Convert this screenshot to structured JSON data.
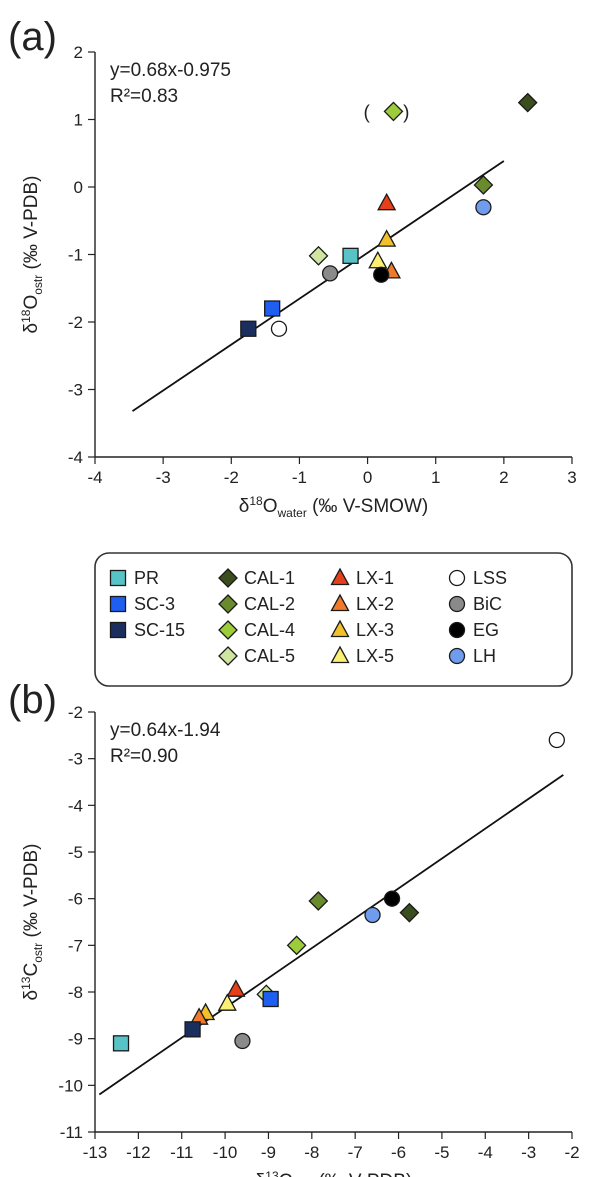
{
  "colors": {
    "PR": "#58c3c6",
    "SC-3": "#1e5ef0",
    "SC-15": "#1a2f5e",
    "CAL-1": "#3c4d1e",
    "CAL-2": "#6a8a2e",
    "CAL-4": "#9dcc3a",
    "CAL-5": "#cfe6a0",
    "LX-1": "#e6401a",
    "LX-2": "#f07a2a",
    "LX-3": "#f2c02a",
    "LX-5": "#fbf073",
    "LSS": "#ffffff",
    "BiC": "#8a8a8a",
    "EG": "#000000",
    "LH": "#6f9cec"
  },
  "legend": {
    "columns": [
      [
        {
          "name": "PR",
          "marker": "square"
        },
        {
          "name": "SC-3",
          "marker": "square"
        },
        {
          "name": "SC-15",
          "marker": "square"
        }
      ],
      [
        {
          "name": "CAL-1",
          "marker": "diamond"
        },
        {
          "name": "CAL-2",
          "marker": "diamond"
        },
        {
          "name": "CAL-4",
          "marker": "diamond"
        },
        {
          "name": "CAL-5",
          "marker": "diamond"
        }
      ],
      [
        {
          "name": "LX-1",
          "marker": "triangle"
        },
        {
          "name": "LX-2",
          "marker": "triangle"
        },
        {
          "name": "LX-3",
          "marker": "triangle"
        },
        {
          "name": "LX-5",
          "marker": "triangle"
        }
      ],
      [
        {
          "name": "LSS",
          "marker": "circle"
        },
        {
          "name": "BiC",
          "marker": "circle"
        },
        {
          "name": "EG",
          "marker": "circle"
        },
        {
          "name": "LH",
          "marker": "circle"
        }
      ]
    ]
  },
  "chart_data": [
    {
      "panel_label": "(a)",
      "type": "scatter",
      "equation": "y=0.68x-0.975",
      "r2": "R²=0.83",
      "xlabel_parts": {
        "main": "δ",
        "sup": "18",
        "mid": "O",
        "sub": "water",
        "tail": " (‰ V-SMOW)"
      },
      "ylabel_parts": {
        "main": "δ",
        "sup": "18",
        "mid": "O",
        "sub": "ostr",
        "tail": " (‰ V-PDB)"
      },
      "xlim": [
        -4,
        3
      ],
      "ylim": [
        -4,
        2
      ],
      "xticks": [
        "-4",
        "-3",
        "-2",
        "-1",
        "0",
        "1",
        "2",
        "3"
      ],
      "yticks": [
        "-4",
        "-3",
        "-2",
        "-1",
        "0",
        "1",
        "2"
      ],
      "fit_line": {
        "slope": 0.68,
        "intercept": -0.975,
        "x_range": [
          -3.45,
          2.0
        ]
      },
      "annotation": {
        "text": "( )",
        "x": 0.38,
        "y": 1.12
      },
      "points": [
        {
          "series": "CAL-1",
          "x": 2.35,
          "y": 1.25
        },
        {
          "series": "CAL-4",
          "x": 0.38,
          "y": 1.12
        },
        {
          "series": "CAL-2",
          "x": 1.7,
          "y": 0.03
        },
        {
          "series": "LH",
          "x": 1.7,
          "y": -0.3
        },
        {
          "series": "LX-1",
          "x": 0.28,
          "y": -0.24
        },
        {
          "series": "LX-3",
          "x": 0.28,
          "y": -0.78
        },
        {
          "series": "LX-5",
          "x": 0.15,
          "y": -1.1
        },
        {
          "series": "LX-2",
          "x": 0.35,
          "y": -1.25
        },
        {
          "series": "EG",
          "x": 0.2,
          "y": -1.3
        },
        {
          "series": "CAL-5",
          "x": -0.72,
          "y": -1.02
        },
        {
          "series": "PR",
          "x": -0.25,
          "y": -1.02
        },
        {
          "series": "BiC",
          "x": -0.55,
          "y": -1.28
        },
        {
          "series": "SC-3",
          "x": -1.4,
          "y": -1.8
        },
        {
          "series": "SC-15",
          "x": -1.75,
          "y": -2.1
        },
        {
          "series": "LSS",
          "x": -1.3,
          "y": -2.1
        }
      ]
    },
    {
      "panel_label": "(b)",
      "type": "scatter",
      "equation": "y=0.64x-1.94",
      "r2": "R²=0.90",
      "xlabel_parts": {
        "main": "δ",
        "sup": "13",
        "mid": "C",
        "sub": "DIC",
        "tail": " (‰ V-PDB)"
      },
      "ylabel_parts": {
        "main": "δ",
        "sup": "13",
        "mid": "C",
        "sub": "ostr",
        "tail": " (‰ V-PDB)"
      },
      "xlim": [
        -13,
        -2
      ],
      "ylim": [
        -11,
        -2
      ],
      "xticks": [
        "-13",
        "-12",
        "-11",
        "-10",
        "-9",
        "-8",
        "-7",
        "-6",
        "-5",
        "-4",
        "-3",
        "-2"
      ],
      "yticks": [
        "-11",
        "-10",
        "-9",
        "-8",
        "-7",
        "-6",
        "-5",
        "-4",
        "-3",
        "-2"
      ],
      "fit_line": {
        "slope": 0.64,
        "intercept": -1.94,
        "x_range": [
          -12.9,
          -2.2
        ]
      },
      "annotation": null,
      "points": [
        {
          "series": "LSS",
          "x": -2.35,
          "y": -2.6
        },
        {
          "series": "CAL-2",
          "x": -7.85,
          "y": -6.05
        },
        {
          "series": "EG",
          "x": -6.15,
          "y": -6.0
        },
        {
          "series": "CAL-1",
          "x": -5.75,
          "y": -6.3
        },
        {
          "series": "LH",
          "x": -6.6,
          "y": -6.35
        },
        {
          "series": "CAL-4",
          "x": -8.35,
          "y": -7.0
        },
        {
          "series": "LX-1",
          "x": -9.75,
          "y": -7.95
        },
        {
          "series": "CAL-5",
          "x": -9.05,
          "y": -8.05
        },
        {
          "series": "SC-3",
          "x": -8.95,
          "y": -8.15
        },
        {
          "series": "LX-5",
          "x": -9.95,
          "y": -8.25
        },
        {
          "series": "LX-3",
          "x": -10.45,
          "y": -8.45
        },
        {
          "series": "LX-2",
          "x": -10.6,
          "y": -8.55
        },
        {
          "series": "SC-15",
          "x": -10.75,
          "y": -8.8
        },
        {
          "series": "BiC",
          "x": -9.6,
          "y": -9.05
        },
        {
          "series": "PR",
          "x": -12.4,
          "y": -9.1
        }
      ]
    }
  ]
}
